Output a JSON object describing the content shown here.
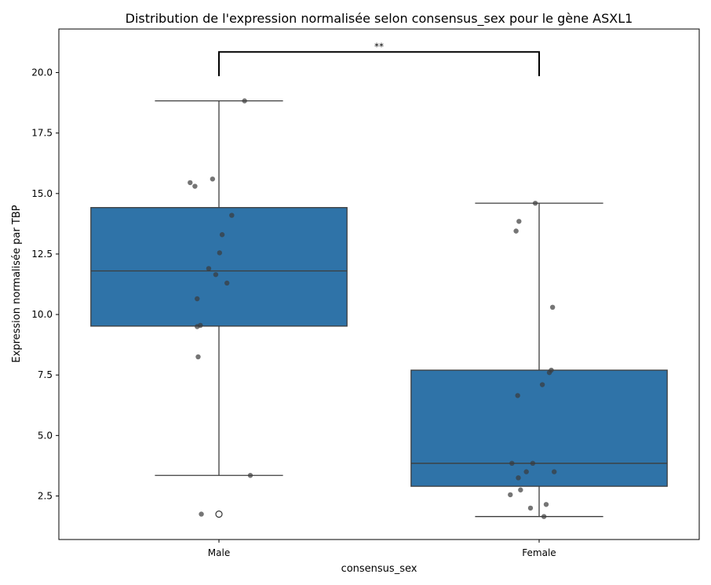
{
  "chart_data": {
    "type": "box",
    "title": "Distribution de l'expression normalisée selon consensus_sex pour le gène ASXL1",
    "xlabel": "consensus_sex",
    "ylabel": "Expression normalisée par TBP",
    "categories": [
      "Male",
      "Female"
    ],
    "yticks": [
      "2.5",
      "5.0",
      "7.5",
      "10.0",
      "12.5",
      "15.0",
      "17.5",
      "20.0"
    ],
    "ylim": [
      0.7,
      21.8
    ],
    "grid": false,
    "box_color": "#2f73a8",
    "point_color": "#3a3a3a",
    "boxes": [
      {
        "category": "Male",
        "q1": 9.52,
        "median": 11.8,
        "q3": 14.42,
        "whisker_low": 3.35,
        "whisker_high": 18.83,
        "outliers": [
          1.75
        ]
      },
      {
        "category": "Female",
        "q1": 2.9,
        "median": 3.85,
        "q3": 7.7,
        "whisker_low": 1.65,
        "whisker_high": 14.6,
        "outliers": []
      }
    ],
    "points": [
      {
        "category": "Male",
        "values": [
          18.83,
          15.6,
          15.45,
          15.3,
          14.1,
          13.3,
          12.55,
          11.9,
          11.65,
          11.3,
          10.65,
          9.55,
          9.5,
          8.25,
          3.35,
          1.75
        ],
        "jitter": [
          0.08,
          -0.02,
          -0.09,
          -0.075,
          0.04,
          0.01,
          0.002,
          -0.032,
          -0.01,
          0.025,
          -0.068,
          -0.058,
          -0.068,
          -0.065,
          0.098,
          -0.055
        ]
      },
      {
        "category": "Female",
        "values": [
          14.6,
          13.85,
          13.45,
          10.3,
          7.7,
          7.6,
          7.1,
          6.65,
          3.85,
          3.85,
          3.5,
          3.5,
          3.25,
          2.75,
          2.55,
          2.15,
          2.0,
          1.65
        ],
        "jitter": [
          -0.012,
          -0.063,
          -0.072,
          0.042,
          0.038,
          0.032,
          0.01,
          -0.067,
          -0.085,
          -0.02,
          -0.04,
          0.047,
          -0.065,
          -0.058,
          -0.09,
          0.022,
          -0.027,
          0.015
        ]
      }
    ],
    "annotation": {
      "text": "**",
      "from": "Male",
      "to": "Female",
      "y": 20.85,
      "drop_to": 19.85
    }
  }
}
